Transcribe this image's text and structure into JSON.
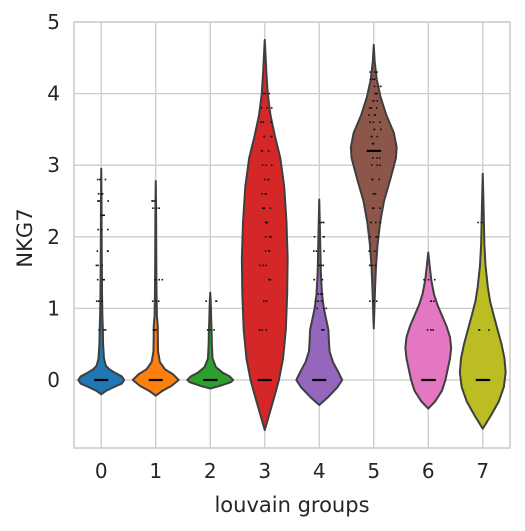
{
  "chart_data": {
    "type": "violin",
    "title": "",
    "xlabel": "louvain groups",
    "ylabel": "NKG7",
    "categories": [
      "0",
      "1",
      "2",
      "3",
      "4",
      "5",
      "6",
      "7"
    ],
    "ylim": [
      -0.95,
      5.0
    ],
    "yticks": [
      "0",
      "1",
      "2",
      "3",
      "4",
      "5"
    ],
    "grid": true,
    "colors": [
      "#1f77b4",
      "#ff7f0e",
      "#2ca02c",
      "#d62728",
      "#9467bd",
      "#8c564b",
      "#e377c2",
      "#bcbd22"
    ],
    "violins": [
      {
        "group": "0",
        "y_min": -0.2,
        "y_max": 2.95,
        "median": 0.0,
        "profile": [
          [
            -0.2,
            0.0
          ],
          [
            -0.15,
            0.22
          ],
          [
            -0.1,
            0.55
          ],
          [
            -0.05,
            0.9
          ],
          [
            0.0,
            1.0
          ],
          [
            0.05,
            0.9
          ],
          [
            0.1,
            0.6
          ],
          [
            0.15,
            0.35
          ],
          [
            0.2,
            0.2
          ],
          [
            0.3,
            0.12
          ],
          [
            0.5,
            0.08
          ],
          [
            0.7,
            0.07
          ],
          [
            0.9,
            0.05
          ],
          [
            1.2,
            0.035
          ],
          [
            1.6,
            0.025
          ],
          [
            2.0,
            0.018
          ],
          [
            2.5,
            0.012
          ],
          [
            2.95,
            0.0
          ]
        ],
        "points": [
          0.0,
          0.7,
          1.1,
          1.4,
          1.6,
          1.8,
          2.1,
          2.3,
          2.5,
          2.6,
          2.8
        ]
      },
      {
        "group": "1",
        "y_min": -0.22,
        "y_max": 2.78,
        "median": 0.0,
        "profile": [
          [
            -0.22,
            0.0
          ],
          [
            -0.15,
            0.3
          ],
          [
            -0.08,
            0.7
          ],
          [
            0.0,
            1.0
          ],
          [
            0.08,
            0.75
          ],
          [
            0.15,
            0.4
          ],
          [
            0.25,
            0.18
          ],
          [
            0.4,
            0.1
          ],
          [
            0.6,
            0.09
          ],
          [
            0.75,
            0.09
          ],
          [
            0.9,
            0.05
          ],
          [
            1.2,
            0.035
          ],
          [
            1.6,
            0.025
          ],
          [
            2.0,
            0.02
          ],
          [
            2.4,
            0.015
          ],
          [
            2.78,
            0.0
          ]
        ],
        "points": [
          0.0,
          0.7,
          1.1,
          1.4,
          2.4,
          2.5
        ]
      },
      {
        "group": "2",
        "y_min": -0.12,
        "y_max": 1.22,
        "median": 0.0,
        "profile": [
          [
            -0.12,
            0.0
          ],
          [
            -0.08,
            0.45
          ],
          [
            -0.03,
            0.9
          ],
          [
            0.0,
            1.0
          ],
          [
            0.05,
            0.85
          ],
          [
            0.1,
            0.55
          ],
          [
            0.18,
            0.25
          ],
          [
            0.3,
            0.1
          ],
          [
            0.5,
            0.07
          ],
          [
            0.7,
            0.06
          ],
          [
            0.85,
            0.04
          ],
          [
            1.0,
            0.03
          ],
          [
            1.1,
            0.02
          ],
          [
            1.22,
            0.0
          ]
        ],
        "points": [
          0.0,
          0.7,
          1.1
        ]
      },
      {
        "group": "3",
        "y_min": -0.7,
        "y_max": 4.75,
        "median": 0.0,
        "profile": [
          [
            -0.7,
            0.0
          ],
          [
            -0.5,
            0.18
          ],
          [
            -0.2,
            0.45
          ],
          [
            0.0,
            0.62
          ],
          [
            0.3,
            0.8
          ],
          [
            0.7,
            0.92
          ],
          [
            1.2,
            0.98
          ],
          [
            1.7,
            1.0
          ],
          [
            2.2,
            0.95
          ],
          [
            2.7,
            0.85
          ],
          [
            3.1,
            0.68
          ],
          [
            3.4,
            0.45
          ],
          [
            3.7,
            0.25
          ],
          [
            4.0,
            0.13
          ],
          [
            4.3,
            0.07
          ],
          [
            4.5,
            0.04
          ],
          [
            4.75,
            0.0
          ]
        ],
        "points": [
          0.0,
          0.7,
          1.1,
          1.4,
          1.6,
          1.8,
          2.0,
          2.2,
          2.4,
          2.6,
          2.8,
          3.0,
          3.2,
          3.4,
          3.6,
          3.8,
          4.0
        ]
      },
      {
        "group": "4",
        "y_min": -0.35,
        "y_max": 2.52,
        "median": 0.0,
        "profile": [
          [
            -0.35,
            0.0
          ],
          [
            -0.25,
            0.35
          ],
          [
            -0.1,
            0.8
          ],
          [
            0.0,
            1.0
          ],
          [
            0.1,
            0.85
          ],
          [
            0.25,
            0.6
          ],
          [
            0.4,
            0.45
          ],
          [
            0.55,
            0.42
          ],
          [
            0.7,
            0.4
          ],
          [
            0.85,
            0.3
          ],
          [
            1.0,
            0.2
          ],
          [
            1.2,
            0.12
          ],
          [
            1.5,
            0.07
          ],
          [
            1.8,
            0.05
          ],
          [
            2.1,
            0.03
          ],
          [
            2.52,
            0.0
          ]
        ],
        "points": [
          0.0,
          0.7,
          1.0,
          1.1,
          1.2,
          1.4,
          1.6,
          1.8,
          2.0,
          2.2
        ]
      },
      {
        "group": "5",
        "y_min": 0.72,
        "y_max": 4.68,
        "median": 3.2,
        "profile": [
          [
            0.72,
            0.0
          ],
          [
            1.0,
            0.03
          ],
          [
            1.3,
            0.06
          ],
          [
            1.6,
            0.1
          ],
          [
            1.9,
            0.17
          ],
          [
            2.2,
            0.28
          ],
          [
            2.5,
            0.45
          ],
          [
            2.8,
            0.72
          ],
          [
            3.1,
            0.97
          ],
          [
            3.25,
            1.0
          ],
          [
            3.45,
            0.88
          ],
          [
            3.7,
            0.55
          ],
          [
            3.95,
            0.3
          ],
          [
            4.2,
            0.13
          ],
          [
            4.45,
            0.04
          ],
          [
            4.68,
            0.0
          ]
        ],
        "points": [
          1.1,
          1.6,
          1.8,
          2.0,
          2.2,
          2.4,
          2.6,
          2.8,
          3.0,
          3.1,
          3.2,
          3.3,
          3.4,
          3.5,
          3.6,
          3.7,
          3.8,
          3.9,
          4.0,
          4.1,
          4.2,
          4.3
        ]
      },
      {
        "group": "6",
        "y_min": -0.4,
        "y_max": 1.78,
        "median": 0.0,
        "profile": [
          [
            -0.4,
            0.0
          ],
          [
            -0.3,
            0.3
          ],
          [
            -0.15,
            0.6
          ],
          [
            0.0,
            0.75
          ],
          [
            0.15,
            0.85
          ],
          [
            0.3,
            0.95
          ],
          [
            0.45,
            1.0
          ],
          [
            0.6,
            0.95
          ],
          [
            0.75,
            0.8
          ],
          [
            0.9,
            0.6
          ],
          [
            1.05,
            0.4
          ],
          [
            1.2,
            0.25
          ],
          [
            1.4,
            0.13
          ],
          [
            1.6,
            0.06
          ],
          [
            1.78,
            0.0
          ]
        ],
        "points": [
          0.0,
          0.7,
          1.1,
          1.4
        ]
      },
      {
        "group": "7",
        "y_min": -0.68,
        "y_max": 2.88,
        "median": 0.0,
        "profile": [
          [
            -0.68,
            0.0
          ],
          [
            -0.5,
            0.35
          ],
          [
            -0.3,
            0.7
          ],
          [
            -0.1,
            0.92
          ],
          [
            0.1,
            1.0
          ],
          [
            0.3,
            0.95
          ],
          [
            0.5,
            0.82
          ],
          [
            0.7,
            0.65
          ],
          [
            0.9,
            0.48
          ],
          [
            1.1,
            0.32
          ],
          [
            1.3,
            0.22
          ],
          [
            1.6,
            0.12
          ],
          [
            1.9,
            0.07
          ],
          [
            2.2,
            0.05
          ],
          [
            2.5,
            0.03
          ],
          [
            2.88,
            0.0
          ]
        ],
        "points": [
          0.0,
          0.7,
          2.2
        ]
      }
    ]
  }
}
